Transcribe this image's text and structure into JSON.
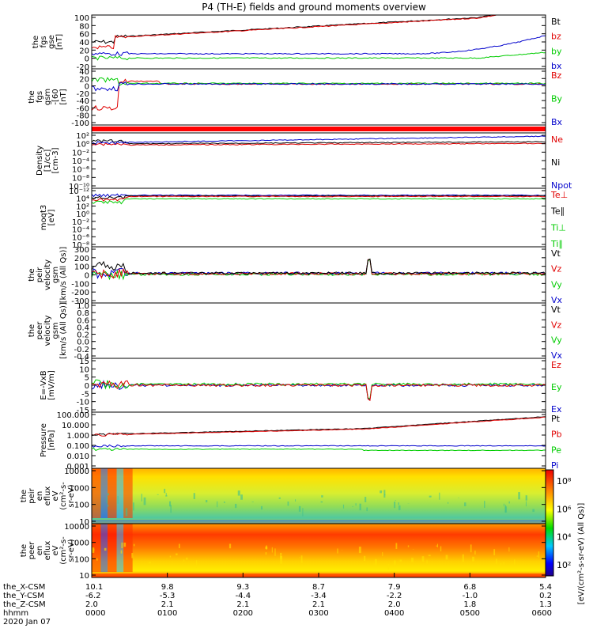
{
  "title": "P4 (TH-E) fields and ground moments overview",
  "colors": {
    "black": "#000000",
    "red": "#e00000",
    "green": "#00cc00",
    "blue": "#0000cc"
  },
  "panels": [
    {
      "id": "fgs-gse",
      "ylabel": [
        "the",
        "fgs",
        "gse",
        "[nT]"
      ],
      "yticks": [
        "100",
        "80",
        "60",
        "40",
        "20",
        "0",
        "-20"
      ],
      "legend": [
        {
          "text": "Bt",
          "color": "black"
        },
        {
          "text": "bz",
          "color": "red"
        },
        {
          "text": "by",
          "color": "green"
        },
        {
          "text": "bx",
          "color": "blue"
        }
      ]
    },
    {
      "id": "fgs-gsm",
      "ylabel": [
        "the",
        "fgs",
        "gsm",
        "-[60",
        "[nT]"
      ],
      "yticks": [
        "40",
        "20",
        "0",
        "-20",
        "-40",
        "-60",
        "-80",
        "-100"
      ],
      "legend": [
        {
          "text": "Bz",
          "color": "red"
        },
        {
          "text": "By",
          "color": "green"
        },
        {
          "text": "Bx",
          "color": "blue"
        }
      ]
    },
    {
      "id": "flag",
      "ylabel": [],
      "yticks": [],
      "legend": []
    },
    {
      "id": "density",
      "ylabel": [
        "Density",
        "[1/cc]",
        "[cm-3]"
      ],
      "yticks": [
        "10²",
        "10⁰",
        "10⁻²",
        "10⁻⁴",
        "10⁻⁶",
        "10⁻⁸",
        "10⁻¹⁰"
      ],
      "legend": [
        {
          "text": "Ne",
          "color": "red"
        },
        {
          "text": "Ni",
          "color": "black"
        },
        {
          "text": "Npot",
          "color": "blue"
        }
      ]
    },
    {
      "id": "temperature",
      "ylabel": [
        "moqt3",
        "[eV]"
      ],
      "yticks": [
        "10⁻¹²",
        "10⁴",
        "10²",
        "10⁰",
        "10⁻²",
        "10⁻⁴",
        "10⁻⁶",
        "10⁻⁸"
      ],
      "legend": [
        {
          "text": "Te⊥",
          "color": "red"
        },
        {
          "text": "Te∥",
          "color": "black"
        },
        {
          "text": "Ti⊥",
          "color": "green"
        },
        {
          "text": "Ti∥",
          "color": "green"
        }
      ]
    },
    {
      "id": "peir-velocity",
      "ylabel": [
        "the",
        "peir",
        "velocity",
        "gsm",
        "[km/s (All Qs)]"
      ],
      "yticks": [
        "300",
        "200",
        "100",
        "0",
        "-100",
        "-200",
        "-300"
      ],
      "legend": [
        {
          "text": "Vt",
          "color": "black"
        },
        {
          "text": "Vz",
          "color": "red"
        },
        {
          "text": "Vy",
          "color": "green"
        },
        {
          "text": "Vx",
          "color": "blue"
        }
      ]
    },
    {
      "id": "peer-velocity",
      "ylabel": [
        "the",
        "peer",
        "velocity",
        "gsm",
        "[km/s (All Qs)]"
      ],
      "yticks": [
        "1.0",
        "0.8",
        "0.6",
        "0.4",
        "0.2",
        "0.0",
        "-0.2",
        "-0.4"
      ],
      "legend": [
        {
          "text": "Vt",
          "color": "black"
        },
        {
          "text": "Vz",
          "color": "red"
        },
        {
          "text": "Vy",
          "color": "green"
        },
        {
          "text": "Vx",
          "color": "blue"
        }
      ]
    },
    {
      "id": "efield",
      "ylabel": [
        "E=-VxB",
        "[mV/m]"
      ],
      "yticks": [
        "15",
        "10",
        "5",
        "0",
        "-5",
        "-10",
        "-15"
      ],
      "legend": [
        {
          "text": "Ez",
          "color": "red"
        },
        {
          "text": "Ey",
          "color": "green"
        },
        {
          "text": "Ex",
          "color": "blue"
        }
      ]
    },
    {
      "id": "pressure",
      "ylabel": [
        "Pressure",
        "[nPa]"
      ],
      "yticks": [
        "100.000",
        "10.000",
        "1.000",
        "0.100",
        "0.010",
        "0.001"
      ],
      "legend": [
        {
          "text": "Pt",
          "color": "black"
        },
        {
          "text": "Pb",
          "color": "red"
        },
        {
          "text": "Pe",
          "color": "green"
        },
        {
          "text": "Pi",
          "color": "blue"
        }
      ]
    },
    {
      "id": "peir-spec",
      "ylabel": [
        "the",
        "peir",
        "en",
        "eflux",
        "eV",
        "(cm²-s-",
        "sr-eV)"
      ],
      "yticks": [
        "10000",
        "1000",
        "100",
        "10"
      ],
      "legend": []
    },
    {
      "id": "peer-spec",
      "ylabel": [
        "the",
        "peer",
        "en",
        "eflux",
        "eV",
        "(cm²-s-",
        "sr-eV)"
      ],
      "yticks": [
        "10000",
        "1000",
        "100",
        "10"
      ],
      "legend": []
    }
  ],
  "colorbar": {
    "ticks": [
      "10⁸",
      "10⁶",
      "10⁴",
      "10²"
    ],
    "label": "[eV/(cm²-s-sr-eV) (All Qs)]"
  },
  "xaxis": {
    "rows": [
      {
        "label": "the_X-CSM",
        "values": [
          "10.1",
          "9.8",
          "9.3",
          "8.7",
          "7.9",
          "6.8",
          "5.4"
        ]
      },
      {
        "label": "the_Y-CSM",
        "values": [
          "-6.2",
          "-5.3",
          "-4.4",
          "-3.4",
          "-2.2",
          "-1.0",
          "0.2"
        ]
      },
      {
        "label": "the_Z-CSM",
        "values": [
          "2.0",
          "2.1",
          "2.1",
          "2.1",
          "2.0",
          "1.8",
          "1.3"
        ]
      },
      {
        "label": "hhmm",
        "values": [
          "0000",
          "0100",
          "0200",
          "0300",
          "0400",
          "0500",
          "0600"
        ]
      }
    ],
    "date": "2020 Jan 07"
  },
  "chart_data": {
    "type": "line",
    "title": "P4 (TH-E) fields and ground moments overview",
    "x_ticks": [
      "0000",
      "0100",
      "0200",
      "0300",
      "0400",
      "0500",
      "0600"
    ],
    "x_unit": "hhmm",
    "panels": [
      {
        "name": "fgs gse [nT]",
        "ylim": [
          -20,
          100
        ],
        "x": [
          0,
          0.25,
          0.5,
          1,
          1.5,
          2,
          2.5,
          3,
          3.5,
          4,
          4.5,
          5,
          5.5,
          6
        ],
        "series": [
          {
            "name": "Bt",
            "color": "black",
            "values": [
              10,
              45,
              45,
              47,
              50,
              55,
              58,
              65,
              70,
              78,
              85,
              92,
              100,
              110
            ]
          },
          {
            "name": "bz",
            "color": "red",
            "values": [
              30,
              44,
              44,
              47,
              50,
              55,
              58,
              65,
              70,
              78,
              85,
              92,
              100,
              110
            ]
          },
          {
            "name": "by",
            "color": "green",
            "values": [
              -5,
              -5,
              -6,
              -6,
              -7,
              -7,
              -8,
              -8,
              -8,
              -8,
              -8,
              -7,
              -6,
              3
            ]
          },
          {
            "name": "bx",
            "color": "blue",
            "values": [
              5,
              0,
              -1,
              -1,
              -2,
              -2,
              -2,
              -3,
              -2,
              2,
              4,
              9,
              20,
              58
            ]
          }
        ]
      },
      {
        "name": "fgs gsm [nT]",
        "ylim": [
          -110,
          40
        ],
        "x": [
          0,
          0.25,
          0.5,
          1,
          2,
          3,
          4,
          5,
          6
        ],
        "series": [
          {
            "name": "Bz",
            "color": "red",
            "values": [
              -70,
              -50,
              -20,
              -10,
              -5,
              -3,
              -2,
              -2,
              -2
            ]
          },
          {
            "name": "By",
            "color": "green",
            "values": [
              20,
              5,
              0,
              -2,
              -3,
              -3,
              -3,
              -3,
              -3
            ]
          },
          {
            "name": "Bx",
            "color": "blue",
            "values": [
              -10,
              -5,
              -2,
              -1,
              -1,
              -1,
              -1,
              -1,
              -1
            ]
          }
        ]
      },
      {
        "name": "Pressure [nPa]",
        "ylim": [
          0.001,
          100
        ],
        "yscale": "log",
        "x": [
          0,
          0.5,
          1,
          2,
          3,
          4,
          5,
          6
        ],
        "series": [
          {
            "name": "Pt",
            "color": "black",
            "values": [
              0.9,
              1.0,
              1.2,
              1.5,
              2.2,
              3.5,
              6,
              12
            ]
          },
          {
            "name": "Pb",
            "color": "red",
            "values": [
              0.8,
              1.0,
              1.2,
              1.5,
              2.2,
              3.5,
              6,
              12
            ]
          },
          {
            "name": "Pe",
            "color": "green",
            "values": [
              0.08,
              0.05,
              0.045,
              0.045,
              0.04,
              0.03,
              0.03,
              0.05
            ]
          },
          {
            "name": "Pi",
            "color": "blue",
            "values": [
              0.2,
              0.15,
              0.14,
              0.14,
              0.14,
              0.14,
              0.13,
              0.13
            ]
          }
        ]
      }
    ]
  }
}
